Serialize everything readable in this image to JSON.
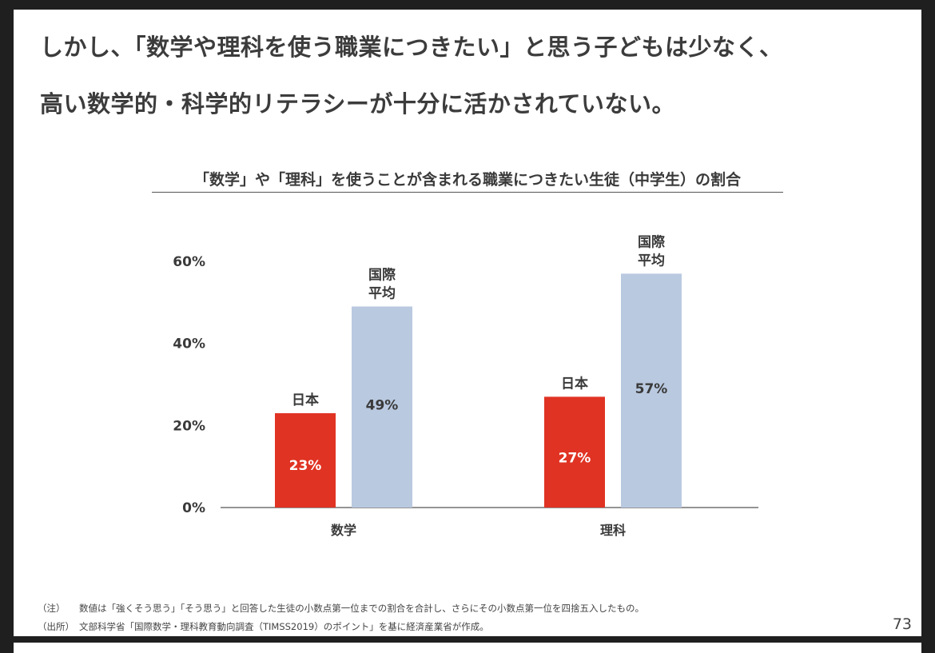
{
  "headline": {
    "line1": "しかし、「数学や理科を使う職業につきたい」と思う子どもは少なく、",
    "line2": "高い数学的・科学的リテラシーが十分に活かされていない。"
  },
  "chart_data": {
    "type": "bar",
    "title": "「数学」や「理科」を使うことが含まれる職業につきたい生徒（中学生）の割合",
    "categories": [
      "数学",
      "理科"
    ],
    "series": [
      {
        "name": "日本",
        "values": [
          23,
          27
        ],
        "value_labels": [
          "23%",
          "27%"
        ],
        "color": "#e03323"
      },
      {
        "name": "国際平均",
        "name_lines": [
          "国際",
          "平均"
        ],
        "values": [
          49,
          57
        ],
        "value_labels": [
          "49%",
          "57%"
        ],
        "color": "#b9c9e0"
      }
    ],
    "yticks": [
      0,
      20,
      40,
      60
    ],
    "ytick_labels": [
      "0%",
      "20%",
      "40%",
      "60%"
    ],
    "ylim": [
      0,
      60
    ],
    "xlabel": "",
    "ylabel": "",
    "grid": false
  },
  "footnotes": {
    "note": {
      "label": "（注）",
      "text": "数値は「強くそう思う」「そう思う」と回答した生徒の小数点第一位までの割合を合計し、さらにその小数点第一位を四捨五入したもの。"
    },
    "source": {
      "label": "（出所）",
      "text": "文部科学省「国際数学・理科教育動向調査（TIMSS2019）のポイント」を基に経済産業省が作成。"
    }
  },
  "page_number": "73"
}
